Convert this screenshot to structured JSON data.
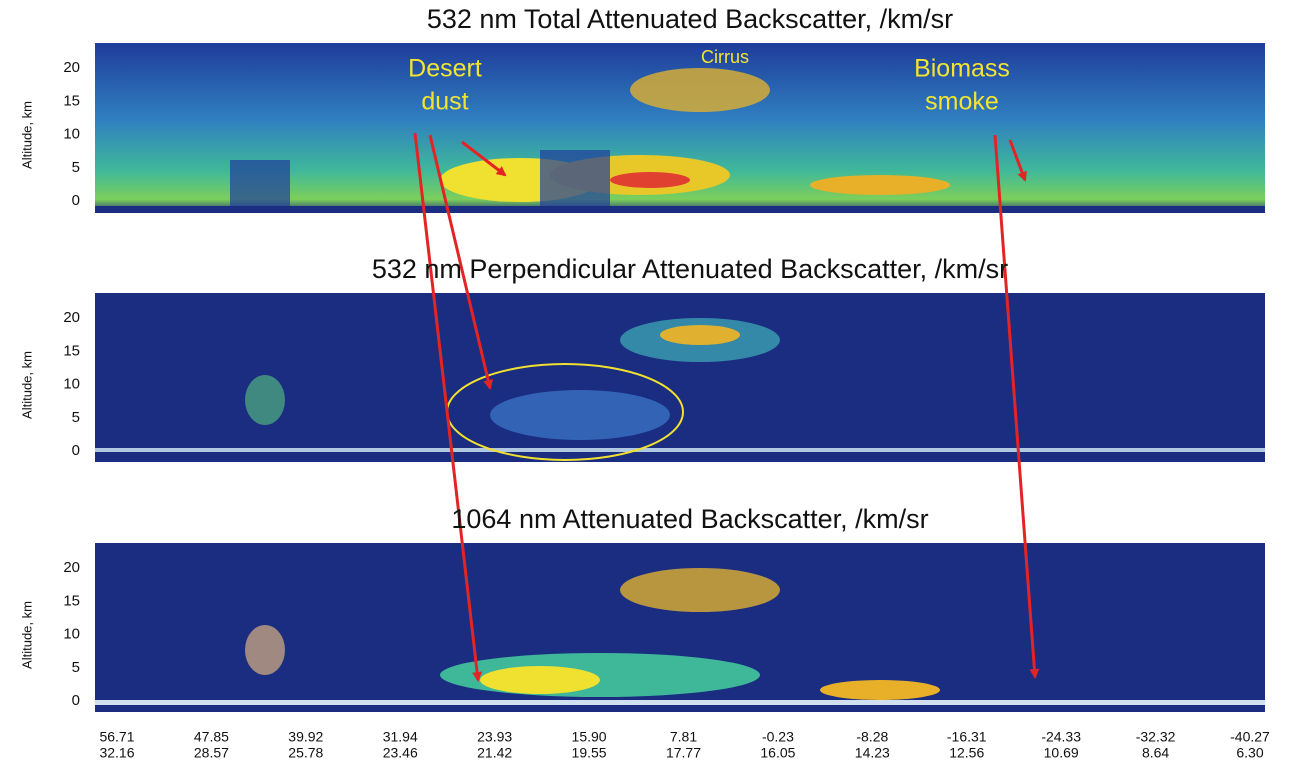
{
  "panels": [
    {
      "title": "532 nm Total Attenuated Backscatter, /km/sr",
      "y_label": "Altitude, km",
      "y_ticks": [
        "20",
        "15",
        "10",
        "5",
        "0"
      ]
    },
    {
      "title": "532 nm Perpendicular Attenuated Backscatter, /km/sr",
      "y_label": "Altitude, km",
      "y_ticks": [
        "20",
        "15",
        "10",
        "5",
        "0"
      ]
    },
    {
      "title": "1064 nm Attenuated Backscatter, /km/sr",
      "y_label": "Altitude, km",
      "y_ticks": [
        "20",
        "15",
        "10",
        "5",
        "0"
      ]
    }
  ],
  "x_labels": [
    [
      "56.71",
      "32.16"
    ],
    [
      "47.85",
      "28.57"
    ],
    [
      "39.92",
      "25.78"
    ],
    [
      "31.94",
      "23.46"
    ],
    [
      "23.93",
      "21.42"
    ],
    [
      "15.90",
      "19.55"
    ],
    [
      "7.81",
      "17.77"
    ],
    [
      "-0.23",
      "16.05"
    ],
    [
      "-8.28",
      "14.23"
    ],
    [
      "-16.31",
      "12.56"
    ],
    [
      "-24.33",
      "10.69"
    ],
    [
      "-32.32",
      "8.64"
    ],
    [
      "-40.27",
      "6.30"
    ]
  ],
  "annotations": {
    "desert_dust": [
      "Desert",
      "dust"
    ],
    "cirrus": [
      "Cirrus"
    ],
    "biomass_smoke": [
      "Biomass",
      "smoke"
    ]
  }
}
